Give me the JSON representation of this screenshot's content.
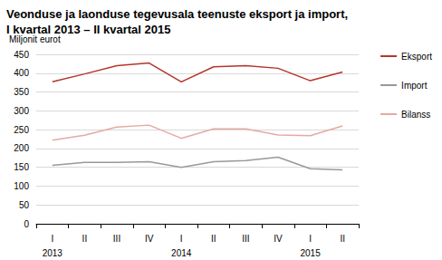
{
  "chart_data": {
    "type": "line",
    "title": "Veonduse ja laonduse tegevusala teenuste eksport ja import,\nI kvartal 2013 – II kvartal 2015",
    "y_label": "Miljonit eurot",
    "categories": [
      "I\n2013",
      "II",
      "III",
      "IV",
      "I\n2014",
      "II",
      "III",
      "IV",
      "I\n2015",
      "II"
    ],
    "series": [
      {
        "name": "Eksport",
        "color": "#b5352c",
        "values": [
          377,
          398,
          420,
          427,
          377,
          417,
          420,
          413,
          380,
          403
        ]
      },
      {
        "name": "Import",
        "color": "#999999",
        "values": [
          155,
          163,
          163,
          165,
          150,
          165,
          168,
          177,
          146,
          143
        ]
      },
      {
        "name": "Bilanss",
        "color": "#e3aaa2",
        "values": [
          222,
          235,
          257,
          262,
          227,
          252,
          252,
          236,
          234,
          260
        ]
      }
    ],
    "ylim": [
      0,
      450
    ],
    "yticks": [
      0,
      50,
      100,
      150,
      200,
      250,
      300,
      350,
      400,
      450
    ],
    "grid": true,
    "legend": "right"
  }
}
